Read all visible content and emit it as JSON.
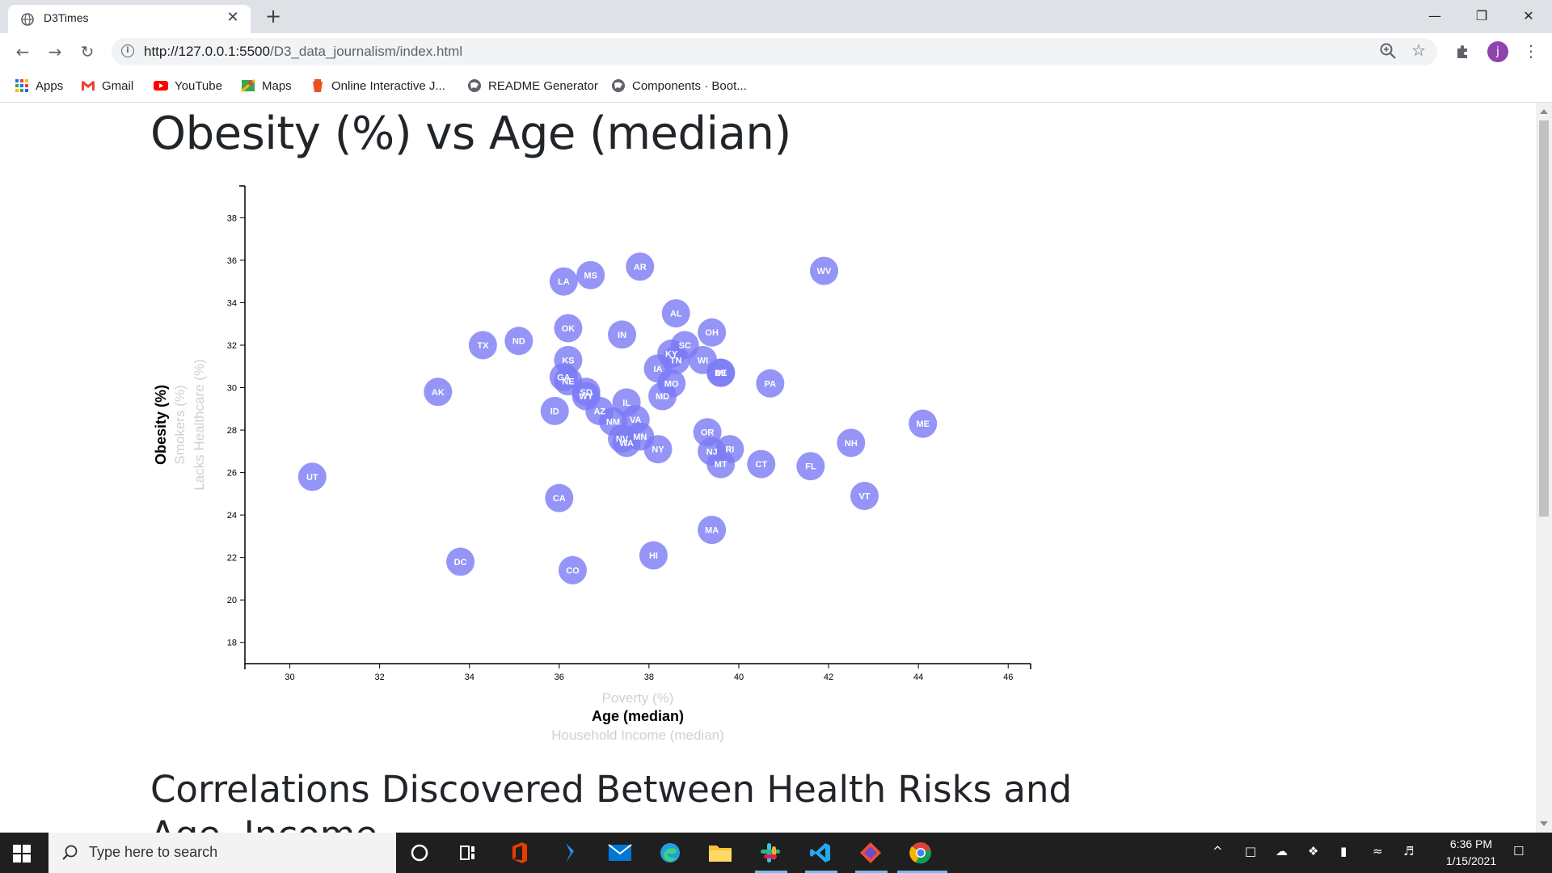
{
  "browser": {
    "tab_title": "D3Times",
    "tab_close": "✕",
    "new_tab": "+",
    "window_controls": {
      "minimize": "—",
      "restore": "❐",
      "close": "✕"
    },
    "url_host": "http://127.0.0.1:5500",
    "url_path": "/D3_data_journalism/index.html",
    "avatar_letter": "j",
    "bookmarks": [
      {
        "label": "Apps",
        "icon": "apps-grid-icon"
      },
      {
        "label": "Gmail",
        "icon": "gmail-icon"
      },
      {
        "label": "YouTube",
        "icon": "youtube-icon"
      },
      {
        "label": "Maps",
        "icon": "maps-icon"
      },
      {
        "label": "Online Interactive J...",
        "icon": "bookmark-icon"
      },
      {
        "label": "README Generator",
        "icon": "globe-icon"
      },
      {
        "label": "Components · Boot...",
        "icon": "globe-icon"
      }
    ]
  },
  "page": {
    "title": "Obesity (%) vs Age (median)",
    "section_heading": "Correlations Discovered Between Health Risks and Age, Income"
  },
  "chart_data": {
    "type": "scatter",
    "x_axis": {
      "active_label": "Age (median)",
      "inactive_labels": [
        "Poverty (%)",
        "Household Income (median)"
      ],
      "range": [
        29,
        46.5
      ],
      "ticks": [
        30,
        32,
        34,
        36,
        38,
        40,
        42,
        44,
        46
      ]
    },
    "y_axis": {
      "active_label": "Obesity (%)",
      "inactive_labels": [
        "Smokers (%)",
        "Lacks Healthcare (%)"
      ],
      "range": [
        17,
        39.5
      ],
      "ticks": [
        18,
        20,
        22,
        24,
        26,
        28,
        30,
        32,
        34,
        36,
        38
      ]
    },
    "marker_color": "#7b7bf5",
    "points": [
      {
        "label": "UT",
        "x": 30.5,
        "y": 25.8
      },
      {
        "label": "AK",
        "x": 33.3,
        "y": 29.8
      },
      {
        "label": "DC",
        "x": 33.8,
        "y": 21.8
      },
      {
        "label": "TX",
        "x": 34.3,
        "y": 32.0
      },
      {
        "label": "ND",
        "x": 35.1,
        "y": 32.2
      },
      {
        "label": "LA",
        "x": 36.1,
        "y": 35.0
      },
      {
        "label": "MS",
        "x": 36.7,
        "y": 35.3
      },
      {
        "label": "OK",
        "x": 36.2,
        "y": 32.8
      },
      {
        "label": "KS",
        "x": 36.2,
        "y": 31.3
      },
      {
        "label": "GA",
        "x": 36.1,
        "y": 30.5
      },
      {
        "label": "NE",
        "x": 36.2,
        "y": 30.3
      },
      {
        "label": "SD",
        "x": 36.6,
        "y": 29.8
      },
      {
        "label": "WY",
        "x": 36.6,
        "y": 29.6
      },
      {
        "label": "ID",
        "x": 35.9,
        "y": 28.9
      },
      {
        "label": "CA",
        "x": 36.0,
        "y": 24.8
      },
      {
        "label": "CO",
        "x": 36.3,
        "y": 21.4
      },
      {
        "label": "AZ",
        "x": 36.9,
        "y": 28.9
      },
      {
        "label": "NM",
        "x": 37.2,
        "y": 28.4
      },
      {
        "label": "IL",
        "x": 37.5,
        "y": 29.3
      },
      {
        "label": "VA",
        "x": 37.7,
        "y": 28.5
      },
      {
        "label": "NV",
        "x": 37.4,
        "y": 27.6
      },
      {
        "label": "WA",
        "x": 37.5,
        "y": 27.4
      },
      {
        "label": "MN",
        "x": 37.8,
        "y": 27.7
      },
      {
        "label": "IN",
        "x": 37.4,
        "y": 32.5
      },
      {
        "label": "AR",
        "x": 37.8,
        "y": 35.7
      },
      {
        "label": "HI",
        "x": 38.1,
        "y": 22.1
      },
      {
        "label": "NY",
        "x": 38.2,
        "y": 27.1
      },
      {
        "label": "IA",
        "x": 38.2,
        "y": 30.9
      },
      {
        "label": "MO",
        "x": 38.5,
        "y": 30.2
      },
      {
        "label": "MD",
        "x": 38.3,
        "y": 29.6
      },
      {
        "label": "KY",
        "x": 38.5,
        "y": 31.6
      },
      {
        "label": "TN",
        "x": 38.6,
        "y": 31.3
      },
      {
        "label": "SC",
        "x": 38.8,
        "y": 32.0
      },
      {
        "label": "AL",
        "x": 38.6,
        "y": 33.5
      },
      {
        "label": "WI",
        "x": 39.2,
        "y": 31.3
      },
      {
        "label": "OH",
        "x": 39.4,
        "y": 32.6
      },
      {
        "label": "DE",
        "x": 39.6,
        "y": 30.7
      },
      {
        "label": "MI",
        "x": 39.6,
        "y": 30.7
      },
      {
        "label": "OR",
        "x": 39.3,
        "y": 27.9
      },
      {
        "label": "NJ",
        "x": 39.4,
        "y": 27.0
      },
      {
        "label": "RI",
        "x": 39.8,
        "y": 27.1
      },
      {
        "label": "MT",
        "x": 39.6,
        "y": 26.4
      },
      {
        "label": "MA",
        "x": 39.4,
        "y": 23.3
      },
      {
        "label": "PA",
        "x": 40.7,
        "y": 30.2
      },
      {
        "label": "CT",
        "x": 40.5,
        "y": 26.4
      },
      {
        "label": "FL",
        "x": 41.6,
        "y": 26.3
      },
      {
        "label": "WV",
        "x": 41.9,
        "y": 35.5
      },
      {
        "label": "NH",
        "x": 42.5,
        "y": 27.4
      },
      {
        "label": "VT",
        "x": 42.8,
        "y": 24.9
      },
      {
        "label": "ME",
        "x": 44.1,
        "y": 28.3
      }
    ]
  },
  "taskbar": {
    "search_placeholder": "Type here to search",
    "time": "6:36 PM",
    "date": "1/15/2021"
  }
}
